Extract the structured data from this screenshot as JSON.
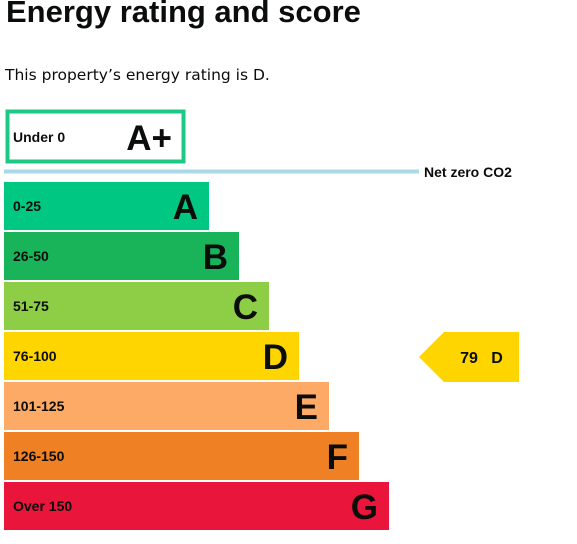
{
  "heading": {
    "title": "Energy rating and score",
    "intro": "This property’s energy rating is D."
  },
  "colors": {
    "text": "#0b0c0c",
    "net_zero_line": "#a9d8e6",
    "a_plus_border": "#1ec985",
    "band_A": "#00c781",
    "band_B": "#19b459",
    "band_C": "#8dce46",
    "band_D": "#ffd500",
    "band_E": "#fcaa65",
    "band_F": "#ef8023",
    "band_G": "#e9153b"
  },
  "chart_data": {
    "type": "bar",
    "title": "",
    "a_plus": {
      "range": "Under 0",
      "letter": "A+"
    },
    "net_zero_label": "Net zero CO2",
    "bands": [
      {
        "range": "0-25",
        "letter": "A",
        "color": "#00c781",
        "scale": 1
      },
      {
        "range": "26-50",
        "letter": "B",
        "color": "#19b459",
        "scale": 2
      },
      {
        "range": "51-75",
        "letter": "C",
        "color": "#8dce46",
        "scale": 3
      },
      {
        "range": "76-100",
        "letter": "D",
        "color": "#ffd500",
        "scale": 4
      },
      {
        "range": "101-125",
        "letter": "E",
        "color": "#fcaa65",
        "scale": 5
      },
      {
        "range": "126-150",
        "letter": "F",
        "color": "#ef8023",
        "scale": 6
      },
      {
        "range": "Over 150",
        "letter": "G",
        "color": "#e9153b",
        "scale": 7
      }
    ],
    "current": {
      "score": "79",
      "letter": "D",
      "band": "D"
    }
  }
}
